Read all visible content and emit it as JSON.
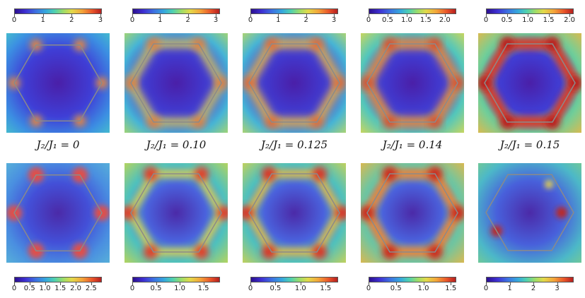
{
  "figure": {
    "captions": [
      "J₂/J₁ = 0",
      "J₂/J₁ = 0.10",
      "J₂/J₁ = 0.125",
      "J₂/J₁ = 0.14",
      "J₂/J₁ = 0.15"
    ],
    "top_colorbars": [
      {
        "ticks": [
          {
            "v": 0,
            "t": "0"
          },
          {
            "v": 1,
            "t": "1"
          },
          {
            "v": 2,
            "t": "2"
          },
          {
            "v": 3,
            "t": "3"
          }
        ],
        "max": 3.05
      },
      {
        "ticks": [
          {
            "v": 0,
            "t": "0"
          },
          {
            "v": 1,
            "t": "1"
          },
          {
            "v": 2,
            "t": "2"
          },
          {
            "v": 3,
            "t": "3"
          }
        ],
        "max": 3.15
      },
      {
        "ticks": [
          {
            "v": 0,
            "t": "0"
          },
          {
            "v": 1,
            "t": "1"
          },
          {
            "v": 2,
            "t": "2"
          },
          {
            "v": 3,
            "t": "3"
          }
        ],
        "max": 3.15
      },
      {
        "ticks": [
          {
            "v": 0,
            "t": "0"
          },
          {
            "v": 0.5,
            "t": "0.5"
          },
          {
            "v": 1,
            "t": "1.0"
          },
          {
            "v": 1.5,
            "t": "1.5"
          },
          {
            "v": 2,
            "t": "2.0"
          }
        ],
        "max": 2.3
      },
      {
        "ticks": [
          {
            "v": 0,
            "t": "0"
          },
          {
            "v": 0.5,
            "t": "0.5"
          },
          {
            "v": 1,
            "t": "1.0"
          },
          {
            "v": 1.5,
            "t": "1.5"
          },
          {
            "v": 2,
            "t": "2.0"
          }
        ],
        "max": 2.1
      }
    ],
    "bottom_colorbars": [
      {
        "ticks": [
          {
            "v": 0,
            "t": "0"
          },
          {
            "v": 0.5,
            "t": "0.5"
          },
          {
            "v": 1,
            "t": "1.0"
          },
          {
            "v": 1.5,
            "t": "1.5"
          },
          {
            "v": 2,
            "t": "2.0"
          },
          {
            "v": 2.5,
            "t": "2.5"
          }
        ],
        "max": 2.85
      },
      {
        "ticks": [
          {
            "v": 0,
            "t": "0"
          },
          {
            "v": 0.5,
            "t": "0.5"
          },
          {
            "v": 1,
            "t": "1.0"
          },
          {
            "v": 1.5,
            "t": "1.5"
          }
        ],
        "max": 1.85
      },
      {
        "ticks": [
          {
            "v": 0,
            "t": "0"
          },
          {
            "v": 0.5,
            "t": "0.5"
          },
          {
            "v": 1,
            "t": "1.0"
          },
          {
            "v": 1.5,
            "t": "1.5"
          }
        ],
        "max": 1.75
      },
      {
        "ticks": [
          {
            "v": 0,
            "t": "0"
          },
          {
            "v": 0.5,
            "t": "0.5"
          },
          {
            "v": 1,
            "t": "1.0"
          },
          {
            "v": 1.5,
            "t": "1.5"
          }
        ],
        "max": 1.6
      },
      {
        "ticks": [
          {
            "v": 0,
            "t": "0"
          },
          {
            "v": 1,
            "t": "1"
          },
          {
            "v": 2,
            "t": "2"
          },
          {
            "v": 3,
            "t": "3"
          }
        ],
        "max": 3.7
      }
    ],
    "colors": {
      "low": "#2b0f8f",
      "mid": "#4fd0b0",
      "high": "#b51f1f",
      "hexagon": "#8a8a8a"
    }
  }
}
